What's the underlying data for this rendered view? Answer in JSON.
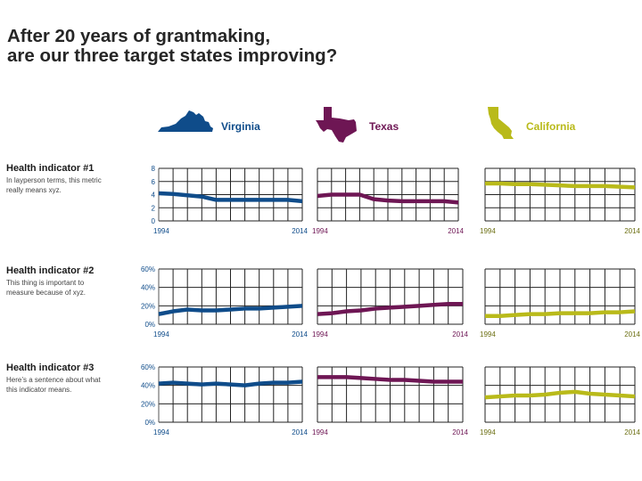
{
  "title": {
    "line1": "After 20 years of grantmaking,",
    "line2": "are our three target states improving?"
  },
  "states": [
    {
      "name": "Virginia",
      "color": "#0f4c8a",
      "icon": "virginia-map-icon"
    },
    {
      "name": "Texas",
      "color": "#6e1654",
      "icon": "texas-map-icon"
    },
    {
      "name": "California",
      "color": "#b9ba1a",
      "icon": "california-map-icon"
    }
  ],
  "indicators": [
    {
      "title": "Health indicator #1",
      "description": "In layperson terms, this metric really means xyz."
    },
    {
      "title": "Health indicator #2",
      "description": "This thing is important to measure because of xyz."
    },
    {
      "title": "Health indicator #3",
      "description": "Here’s a sentence about what this indicator means."
    }
  ],
  "chart_data": [
    {
      "type": "line",
      "indicator": "Health indicator #1",
      "state": "Virginia",
      "x": [
        1994,
        1996,
        1998,
        2000,
        2002,
        2004,
        2006,
        2008,
        2010,
        2012,
        2014
      ],
      "values": [
        4.2,
        4.1,
        3.9,
        3.7,
        3.2,
        3.2,
        3.2,
        3.2,
        3.2,
        3.2,
        3.0
      ],
      "ylim": [
        0,
        8
      ],
      "yticks": [
        0,
        2,
        4,
        6,
        8
      ],
      "ytick_labels": [
        "0",
        "2",
        "4",
        "6",
        "8"
      ],
      "xtick_labels": [
        "1994",
        "2014"
      ]
    },
    {
      "type": "line",
      "indicator": "Health indicator #1",
      "state": "Texas",
      "x": [
        1994,
        1996,
        1998,
        2000,
        2002,
        2004,
        2006,
        2008,
        2010,
        2012,
        2014
      ],
      "values": [
        3.8,
        4.0,
        4.0,
        4.0,
        3.3,
        3.1,
        3.0,
        3.0,
        3.0,
        3.0,
        2.8
      ],
      "ylim": [
        0,
        8
      ],
      "yticks": [
        0,
        2,
        4,
        6,
        8
      ],
      "xtick_labels": [
        "1994",
        "2014"
      ]
    },
    {
      "type": "line",
      "indicator": "Health indicator #1",
      "state": "California",
      "x": [
        1994,
        1996,
        1998,
        2000,
        2002,
        2004,
        2006,
        2008,
        2010,
        2012,
        2014
      ],
      "values": [
        5.7,
        5.7,
        5.6,
        5.6,
        5.5,
        5.4,
        5.3,
        5.3,
        5.3,
        5.2,
        5.1
      ],
      "ylim": [
        0,
        8
      ],
      "yticks": [
        0,
        2,
        4,
        6,
        8
      ],
      "xtick_labels": [
        "1994",
        "2014"
      ]
    },
    {
      "type": "line",
      "indicator": "Health indicator #2",
      "state": "Virginia",
      "x": [
        1994,
        1996,
        1998,
        2000,
        2002,
        2004,
        2006,
        2008,
        2010,
        2012,
        2014
      ],
      "values": [
        11,
        14,
        16,
        15,
        15,
        16,
        17,
        17,
        18,
        19,
        20
      ],
      "ylim": [
        0,
        60
      ],
      "yticks": [
        0,
        20,
        40,
        60
      ],
      "ytick_labels": [
        "0%",
        "20%",
        "40%",
        "60%"
      ],
      "xtick_labels": [
        "1994",
        "2014"
      ]
    },
    {
      "type": "line",
      "indicator": "Health indicator #2",
      "state": "Texas",
      "x": [
        1994,
        1996,
        1998,
        2000,
        2002,
        2004,
        2006,
        2008,
        2010,
        2012,
        2014
      ],
      "values": [
        11,
        12,
        14,
        15,
        17,
        18,
        19,
        20,
        21,
        22,
        22
      ],
      "ylim": [
        0,
        60
      ],
      "yticks": [
        0,
        20,
        40,
        60
      ],
      "xtick_labels": [
        "1994",
        "2014"
      ]
    },
    {
      "type": "line",
      "indicator": "Health indicator #2",
      "state": "California",
      "x": [
        1994,
        1996,
        1998,
        2000,
        2002,
        2004,
        2006,
        2008,
        2010,
        2012,
        2014
      ],
      "values": [
        9,
        9,
        10,
        11,
        11,
        12,
        12,
        12,
        13,
        13,
        14
      ],
      "ylim": [
        0,
        60
      ],
      "yticks": [
        0,
        20,
        40,
        60
      ],
      "xtick_labels": [
        "1994",
        "2014"
      ]
    },
    {
      "type": "line",
      "indicator": "Health indicator #3",
      "state": "Virginia",
      "x": [
        1994,
        1996,
        1998,
        2000,
        2002,
        2004,
        2006,
        2008,
        2010,
        2012,
        2014
      ],
      "values": [
        42,
        43,
        42,
        41,
        42,
        41,
        40,
        42,
        43,
        43,
        44
      ],
      "ylim": [
        0,
        60
      ],
      "yticks": [
        0,
        20,
        40,
        60
      ],
      "ytick_labels": [
        "0%",
        "20%",
        "40%",
        "60%"
      ],
      "xtick_labels": [
        "1994",
        "2014"
      ]
    },
    {
      "type": "line",
      "indicator": "Health indicator #3",
      "state": "Texas",
      "x": [
        1994,
        1996,
        1998,
        2000,
        2002,
        2004,
        2006,
        2008,
        2010,
        2012,
        2014
      ],
      "values": [
        49,
        49,
        49,
        48,
        47,
        46,
        46,
        45,
        44,
        44,
        44
      ],
      "ylim": [
        0,
        60
      ],
      "yticks": [
        0,
        20,
        40,
        60
      ],
      "xtick_labels": [
        "1994",
        "2014"
      ]
    },
    {
      "type": "line",
      "indicator": "Health indicator #3",
      "state": "California",
      "x": [
        1994,
        1996,
        1998,
        2000,
        2002,
        2004,
        2006,
        2008,
        2010,
        2012,
        2014
      ],
      "values": [
        27,
        28,
        29,
        29,
        30,
        32,
        33,
        31,
        30,
        29,
        28
      ],
      "ylim": [
        0,
        60
      ],
      "yticks": [
        0,
        20,
        40,
        60
      ],
      "xtick_labels": [
        "1994",
        "2014"
      ]
    }
  ]
}
